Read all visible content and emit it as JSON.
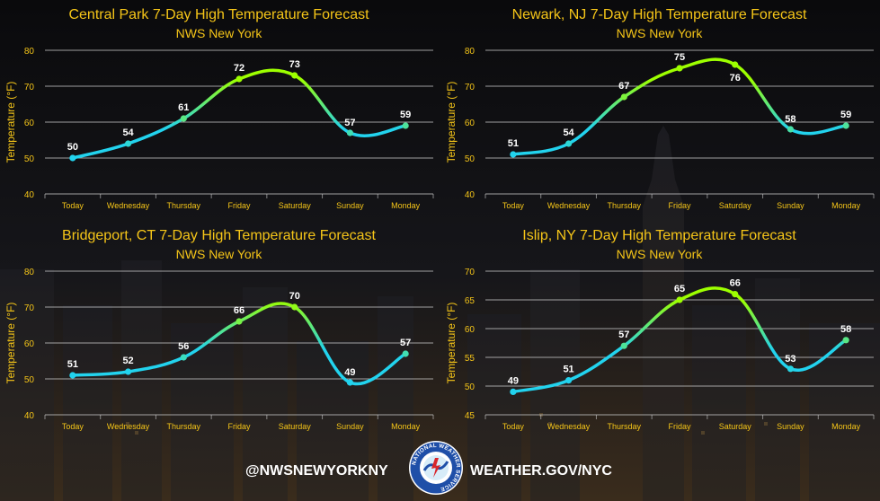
{
  "footer": {
    "twitter": "@NWSNEWYORKNY",
    "website": "WEATHER.GOV/NYC",
    "logo_text": "NATIONAL WEATHER SERVICE"
  },
  "colors": {
    "title": "#f5c518",
    "axis_text": "#f5c518",
    "value_label": "#ffffff",
    "line_low": "#22d3ee",
    "line_high": "#9dff00",
    "grid": "#cfcfcf"
  },
  "chart_data": [
    {
      "type": "line",
      "title": "Central Park 7-Day High Temperature Forecast",
      "subtitle": "NWS New York",
      "ylabel": "Temperature (°F)",
      "categories": [
        "Today",
        "Wednesday",
        "Thursday",
        "Friday",
        "Saturday",
        "Sunday",
        "Monday"
      ],
      "values": [
        50,
        54,
        61,
        72,
        73,
        57,
        59
      ],
      "ylim": [
        40,
        80
      ],
      "yticks": [
        40,
        50,
        60,
        70,
        80
      ],
      "grid": true
    },
    {
      "type": "line",
      "title": "Newark, NJ 7-Day High Temperature Forecast",
      "subtitle": "NWS New York",
      "ylabel": "Temperature (°F)",
      "categories": [
        "Today",
        "Wednesday",
        "Thursday",
        "Friday",
        "Saturday",
        "Sunday",
        "Monday"
      ],
      "values": [
        51,
        54,
        67,
        75,
        76,
        58,
        59
      ],
      "ylim": [
        40,
        80
      ],
      "yticks": [
        40,
        50,
        60,
        70,
        80
      ],
      "grid": true
    },
    {
      "type": "line",
      "title": "Bridgeport, CT 7-Day High Temperature Forecast",
      "subtitle": "NWS New York",
      "ylabel": "Temperature (°F)",
      "categories": [
        "Today",
        "Wednesday",
        "Thursday",
        "Friday",
        "Saturday",
        "Sunday",
        "Monday"
      ],
      "values": [
        51,
        52,
        56,
        66,
        70,
        49,
        57
      ],
      "ylim": [
        40,
        80
      ],
      "yticks": [
        40,
        50,
        60,
        70,
        80
      ],
      "grid": true
    },
    {
      "type": "line",
      "title": "Islip, NY 7-Day High Temperature Forecast",
      "subtitle": "NWS New York",
      "ylabel": "Temperature (°F)",
      "categories": [
        "Today",
        "Wednesday",
        "Thursday",
        "Friday",
        "Saturday",
        "Sunday",
        "Monday"
      ],
      "values": [
        49,
        51,
        57,
        65,
        66,
        53,
        58
      ],
      "ylim": [
        45,
        70
      ],
      "yticks": [
        45,
        50,
        55,
        60,
        65,
        70
      ],
      "grid": true
    }
  ]
}
